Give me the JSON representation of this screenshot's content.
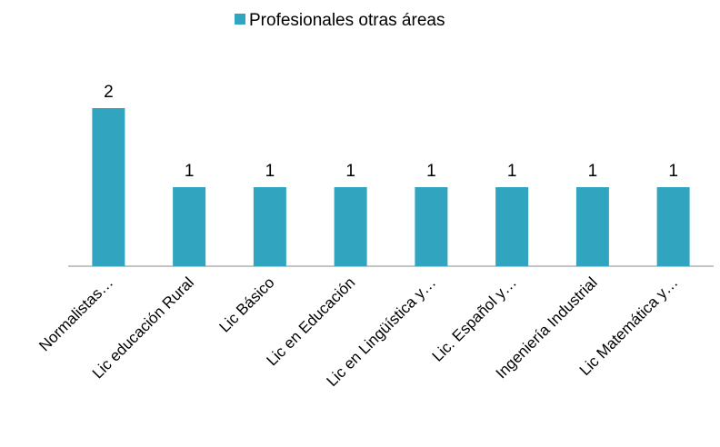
{
  "chart_data": {
    "type": "bar",
    "categories": [
      "Normalistas…",
      "Lic educación Rural",
      "Lic Básico",
      "Lic en Educación",
      "Lic en Lingüística y…",
      "Lic. Español y…",
      "Ingeniería Industrial",
      "Lic Matemática y…"
    ],
    "series": [
      {
        "name": "Profesionales otras áreas",
        "color": "#31a5c0",
        "values": [
          2,
          1,
          1,
          1,
          1,
          1,
          1,
          1
        ]
      }
    ],
    "legend": "top"
  }
}
